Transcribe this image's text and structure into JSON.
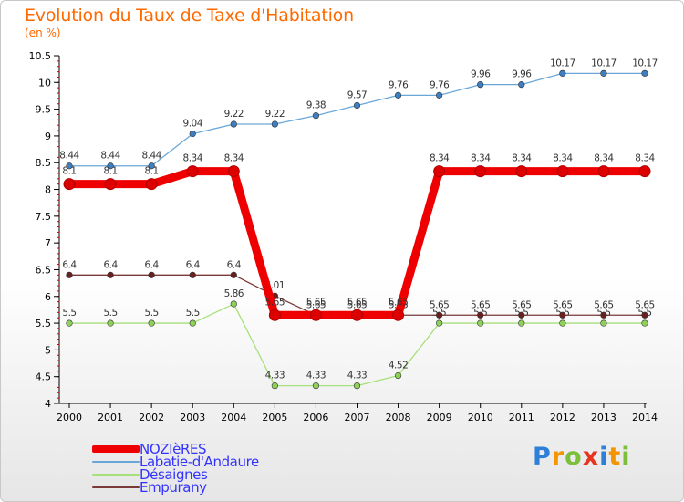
{
  "title": "Evolution du Taux de Taxe d'Habitation",
  "subtitle": "(en %)",
  "logo": {
    "letters": [
      "P",
      "r",
      "o",
      "x",
      "i",
      "t",
      "i"
    ],
    "colors": [
      "#2e7fd8",
      "#f29500",
      "#7bbf3a",
      "#e8331f",
      "#2e7fd8",
      "#f29500",
      "#7bbf3a"
    ]
  },
  "chart_data": {
    "type": "line",
    "x": [
      "2000",
      "2001",
      "2002",
      "2003",
      "2004",
      "2005",
      "2006",
      "2007",
      "2008",
      "2009",
      "2010",
      "2011",
      "2012",
      "2013",
      "2014"
    ],
    "ylim": [
      4,
      10.5
    ],
    "yticks": [
      "4",
      "4.5",
      "5",
      "5.5",
      "6",
      "6.5",
      "7",
      "7.5",
      "8",
      "8.5",
      "9",
      "9.5",
      "10",
      "10.5"
    ],
    "grid": false,
    "legend_position": "bottom-left",
    "series": [
      {
        "name": "Labatie-d'Andaure",
        "color": "#6aa7d8",
        "marker_color": "#3d7fc0",
        "values": [
          8.44,
          8.44,
          8.44,
          9.04,
          9.22,
          9.22,
          9.38,
          9.57,
          9.76,
          9.76,
          9.96,
          9.96,
          10.17,
          10.17,
          10.17
        ],
        "labels": [
          "8.44",
          "8.44",
          "8.44",
          "9.04",
          "9.22",
          "9.22",
          "9.38",
          "9.57",
          "9.76",
          "9.76",
          "9.96",
          "9.96",
          "10.17",
          "10.17",
          "10.17"
        ]
      },
      {
        "name": "Désaignes",
        "color": "#a6e07a",
        "marker_color": "#8fd05a",
        "values": [
          5.5,
          5.5,
          5.5,
          5.5,
          5.86,
          4.33,
          4.33,
          4.33,
          4.52,
          5.5,
          5.5,
          5.5,
          5.5,
          5.5,
          5.5
        ],
        "labels": [
          "5.5",
          "5.5",
          "5.5",
          "5.5",
          "5.86",
          "4.33",
          "4.33",
          "4.33",
          "4.52",
          "5.5",
          "5.5",
          "5.5",
          "5.5",
          "5.5",
          "5.5"
        ]
      },
      {
        "name": "Empurany",
        "color": "#7a3a3a",
        "marker_color": "#6b2020",
        "values": [
          6.4,
          6.4,
          6.4,
          6.4,
          6.4,
          6.01,
          5.65,
          5.65,
          5.65,
          5.65,
          5.65,
          5.65,
          5.65,
          5.65,
          5.65
        ],
        "labels": [
          "6.4",
          "6.4",
          "6.4",
          "6.4",
          "6.4",
          "6.01",
          "5.65",
          "5.65",
          "5.65",
          "5.65",
          "5.65",
          "5.65",
          "5.65",
          "5.65",
          "5.65"
        ]
      },
      {
        "name": "NOZIèRES",
        "color": "#ee0000",
        "marker_color": "#dd0000",
        "values": [
          8.1,
          8.1,
          8.1,
          8.34,
          8.34,
          5.65,
          5.65,
          5.65,
          5.65,
          8.34,
          8.34,
          8.34,
          8.34,
          8.34,
          8.34
        ],
        "labels": [
          "8.1",
          "8.1",
          "8.1",
          "8.34",
          "8.34",
          "5.65",
          "5.65",
          "5.65",
          "5.65",
          "8.34",
          "8.34",
          "8.34",
          "8.34",
          "8.34",
          "8.34"
        ]
      }
    ],
    "legend": [
      "NOZIèRES",
      "Labatie-d'Andaure",
      "Désaignes",
      "Empurany"
    ]
  }
}
